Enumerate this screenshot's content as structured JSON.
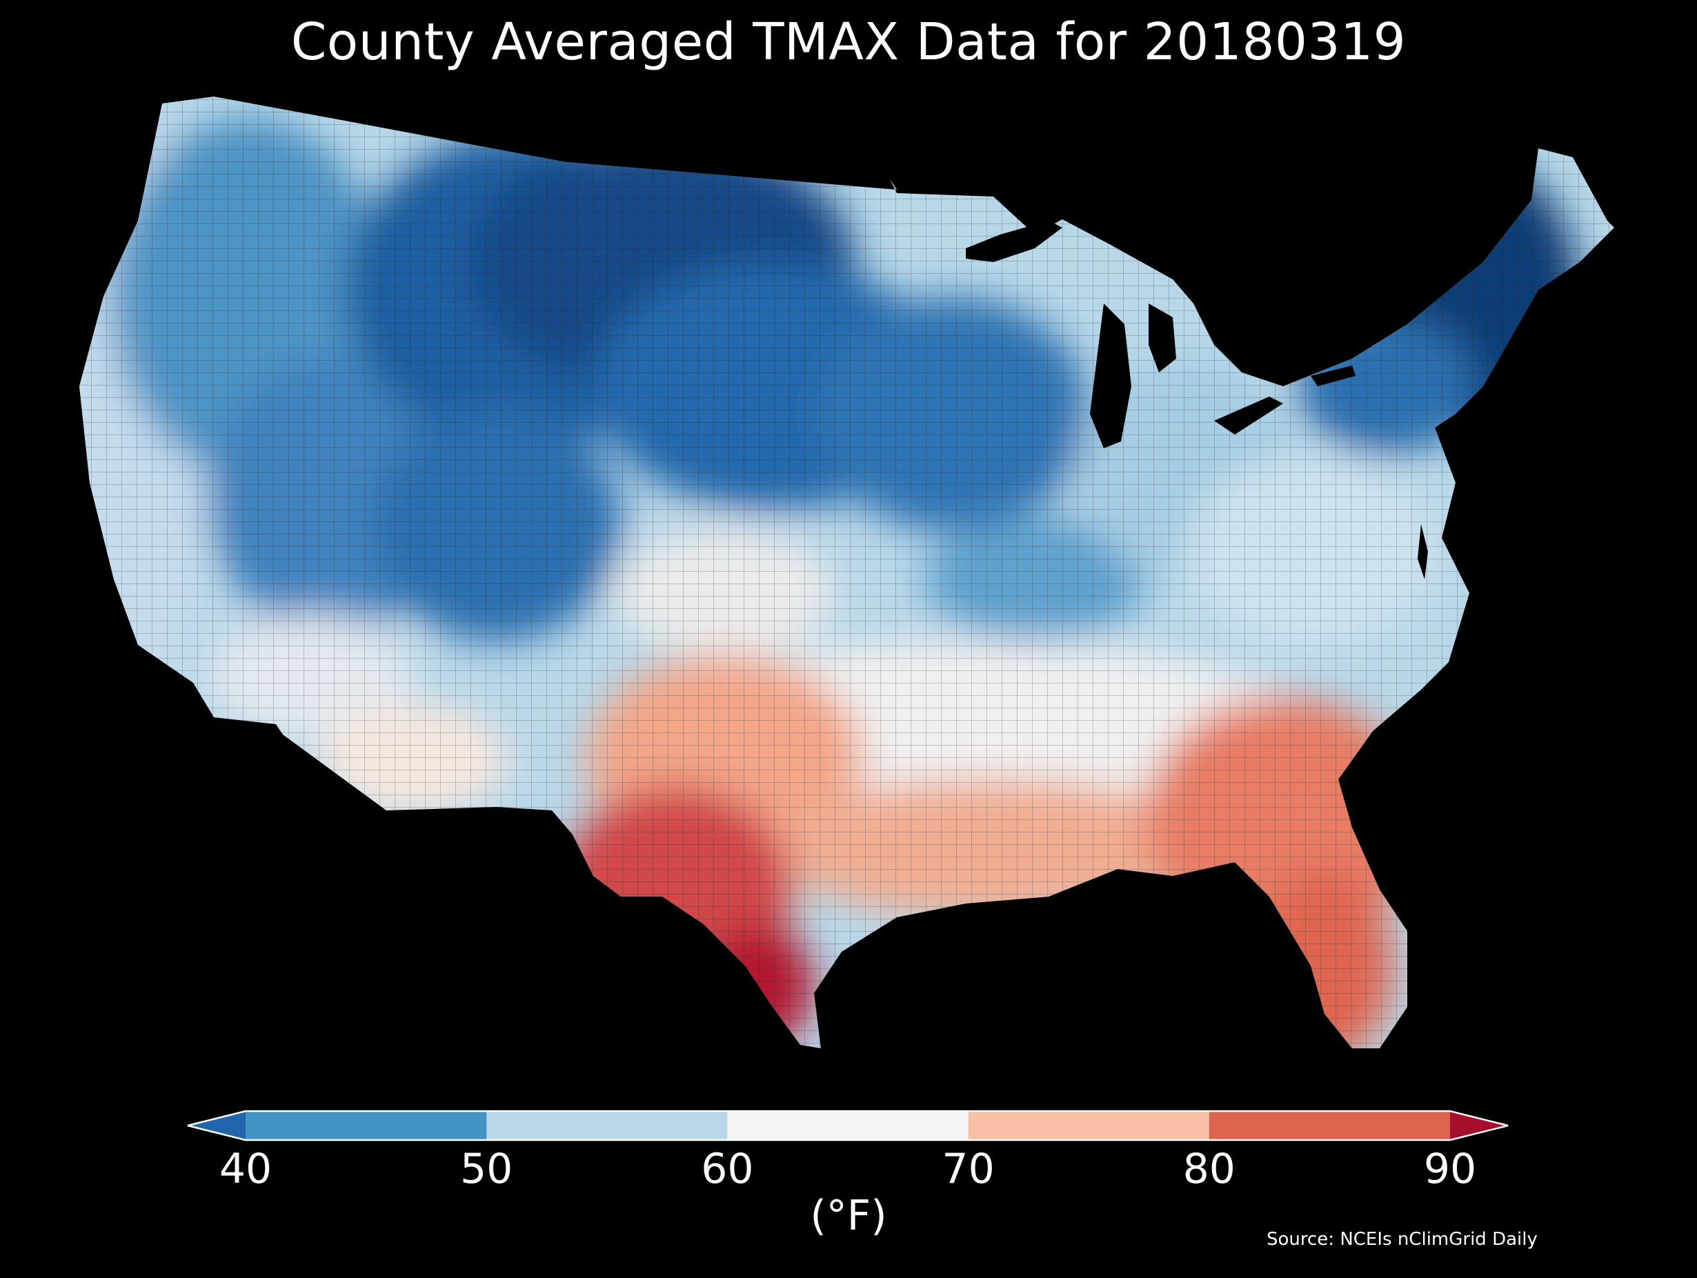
{
  "title": "County Averaged TMAX Data for 20180319",
  "colorbar": {
    "label": "(°F)",
    "ticks": [
      "40",
      "50",
      "60",
      "70",
      "80",
      "90"
    ],
    "colors": {
      "under": "#2166ac",
      "bins": [
        "#4393c3",
        "#b8d8ea",
        "#f5f5f5",
        "#f8c0a6",
        "#dd6451"
      ],
      "over": "#a50f2c"
    }
  },
  "source": "Source: NCEIs nClimGrid Daily",
  "map_data": {
    "type": "choropleth",
    "region": "Contiguous United States (counties)",
    "variable": "TMAX",
    "date": "20180319",
    "units": "°F",
    "scale": {
      "min": 40,
      "max": 90,
      "step": 10,
      "extend": "both"
    },
    "regional_values_approx": {
      "Montana / Wyoming / Dakotas": "<40",
      "Rocky Mountains (CO/UT high country)": "<40",
      "Northeast / New England": "<40",
      "Upper Midwest (MN/IA/WI)": "40-50",
      "Pacific Northwest interior": "40-50",
      "Great Basin (NV/UT)": "40-50",
      "California coast": "50-60",
      "Ohio Valley / Mid-Atlantic": "50-60",
      "Central Plains / Tennessee Valley": "60-70",
      "Southern Plains / Southeast": "70-80",
      "South Texas / Florida": "80-90+"
    }
  }
}
